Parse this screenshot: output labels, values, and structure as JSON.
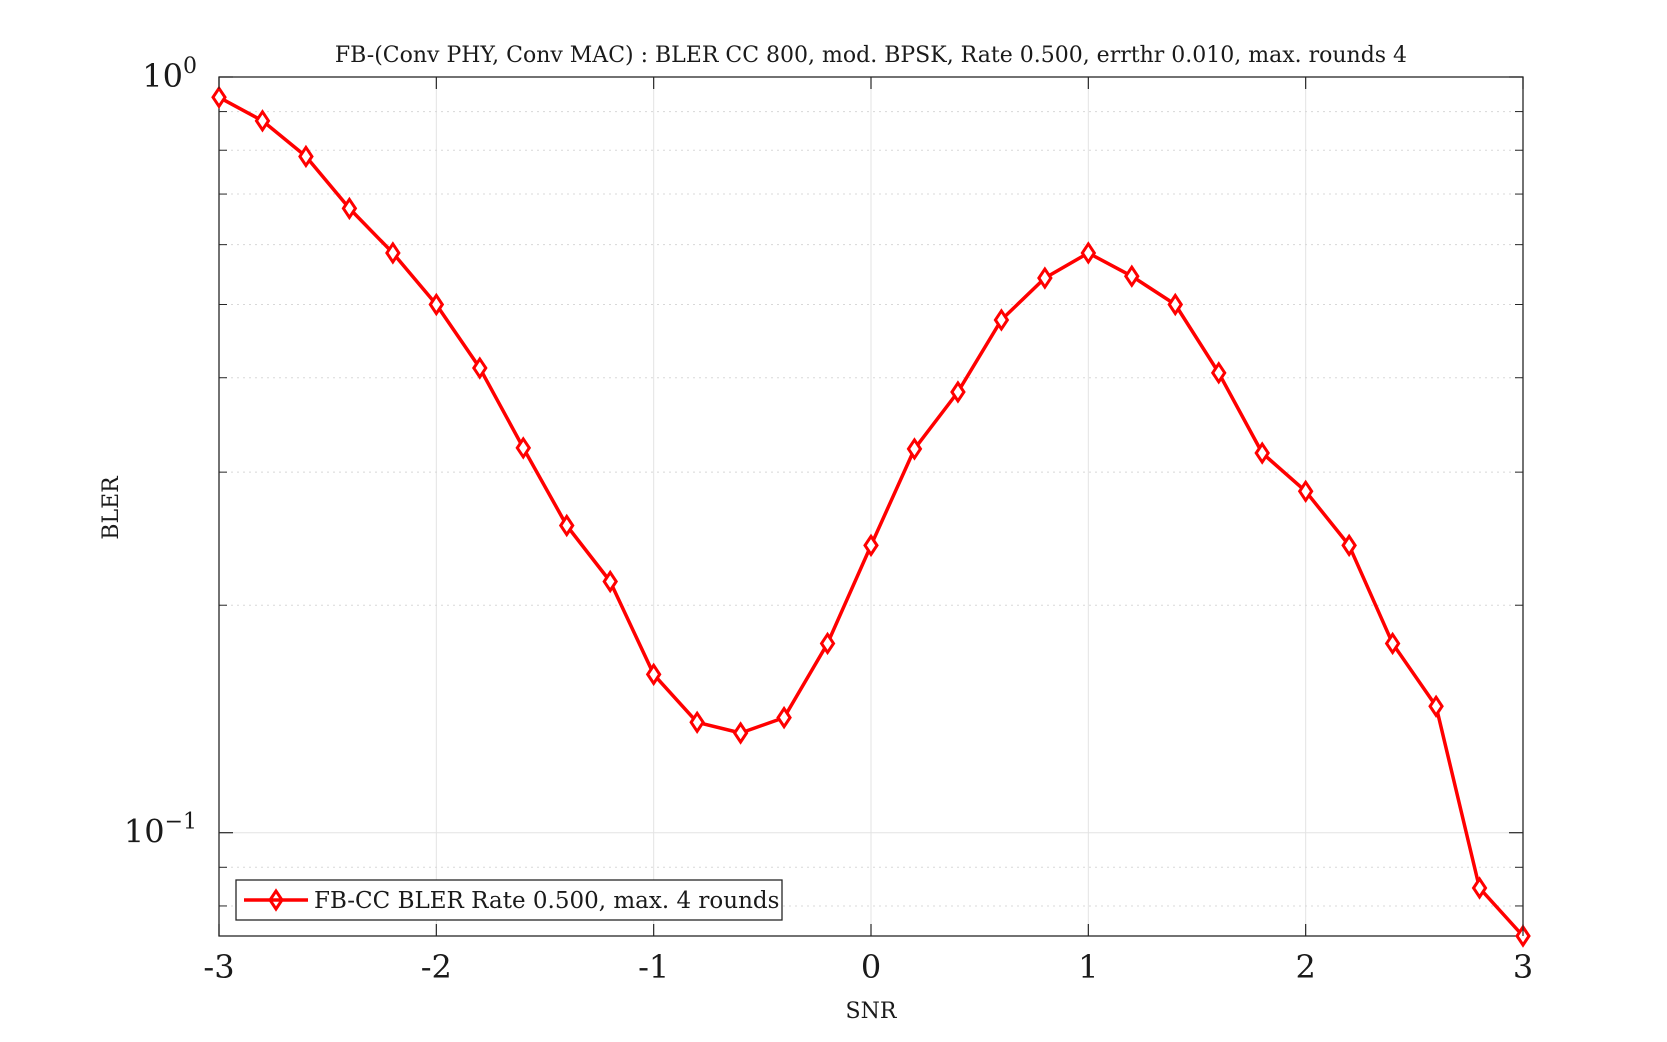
{
  "chart_data": {
    "type": "line",
    "title": "FB-(Conv PHY, Conv MAC) : BLER CC 800, mod. BPSK, Rate 0.500, errthr 0.010, max. rounds 4",
    "xlabel": "SNR",
    "ylabel": "BLER",
    "xlim": [
      -3,
      3
    ],
    "ylim": [
      0.073,
      1.0
    ],
    "yscale": "log",
    "grid": true,
    "legend_position": "bottom-left",
    "x_ticks": [
      "-3",
      "-2",
      "-1",
      "0",
      "1",
      "2",
      "3"
    ],
    "y_ticks": [
      {
        "base": "10",
        "exp": "0",
        "value": 1.0
      },
      {
        "base": "10",
        "exp": "−1",
        "value": 0.1
      }
    ],
    "series": [
      {
        "name": "FB-CC BLER Rate 0.500, max. 4 rounds",
        "color": "#ff0000",
        "marker": "diamond",
        "x": [
          -3.0,
          -2.8,
          -2.6,
          -2.4,
          -2.2,
          -2.0,
          -1.8,
          -1.6,
          -1.4,
          -1.2,
          -1.0,
          -0.8,
          -0.6,
          -0.4,
          -0.2,
          0.0,
          0.2,
          0.4,
          0.6,
          0.8,
          1.0,
          1.2,
          1.4,
          1.6,
          1.8,
          2.0,
          2.2,
          2.4,
          2.6,
          2.8,
          3.0
        ],
        "values": [
          0.94,
          0.875,
          0.785,
          0.67,
          0.585,
          0.5,
          0.412,
          0.323,
          0.255,
          0.215,
          0.162,
          0.14,
          0.1355,
          0.142,
          0.178,
          0.24,
          0.322,
          0.383,
          0.477,
          0.542,
          0.585,
          0.545,
          0.5,
          0.406,
          0.318,
          0.283,
          0.24,
          0.178,
          0.147,
          0.0845,
          0.073
        ]
      }
    ]
  }
}
